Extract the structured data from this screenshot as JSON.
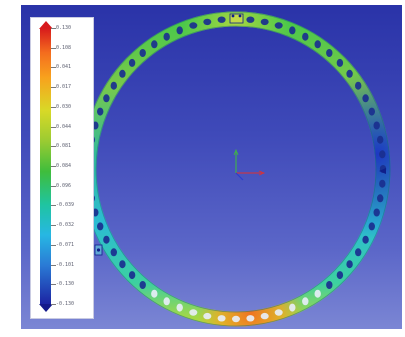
{
  "legend": {
    "scale_colors": [
      "#d7191c",
      "#f46d1e",
      "#f8a21d",
      "#d8d927",
      "#9acb32",
      "#3fbd3c",
      "#1fc4a1",
      "#27b7e3",
      "#2a7ad5",
      "#1c24a3"
    ],
    "ticks": [
      {
        "label": "0.130"
      },
      {
        "label": "0.108"
      },
      {
        "label": "0.041"
      },
      {
        "label": "0.017"
      },
      {
        "label": "0.030"
      },
      {
        "label": "0.044"
      },
      {
        "label": "0.081"
      },
      {
        "label": "0.084"
      },
      {
        "label": "0.096"
      },
      {
        "label": "-0.039"
      },
      {
        "label": "-0.032"
      },
      {
        "label": "-0.071"
      },
      {
        "label": "-0.101"
      },
      {
        "label": "-0.130"
      },
      {
        "label": "-0.130"
      }
    ]
  },
  "viewport": {
    "background_top": "#2a33a8",
    "background_bottom": "#7b86d4",
    "triad_colors": {
      "x": "#e03030",
      "y": "#3fbd3c",
      "z": "#2a3bd0"
    }
  }
}
